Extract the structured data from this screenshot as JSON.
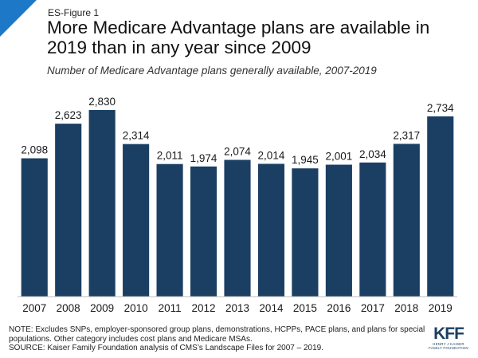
{
  "header": {
    "figure_label": "ES-Figure 1",
    "title": "More Medicare Advantage plans are available in 2019 than in any year since 2009",
    "subtitle": "Number of Medicare Advantage plans generally available, 2007-2019"
  },
  "colors": {
    "bar": "#1b3f63",
    "corner_accent": "#1d78c7",
    "logo": "#1b3f63"
  },
  "chart_data": {
    "type": "bar",
    "title": "Number of Medicare Advantage plans generally available, 2007-2019",
    "xlabel": "",
    "ylabel": "",
    "categories": [
      "2007",
      "2008",
      "2009",
      "2010",
      "2011",
      "2012",
      "2013",
      "2014",
      "2015",
      "2016",
      "2017",
      "2018",
      "2019"
    ],
    "values": [
      2098,
      2623,
      2830,
      2314,
      2011,
      1974,
      2074,
      2014,
      1945,
      2001,
      2034,
      2317,
      2734
    ],
    "value_labels": [
      "2,098",
      "2,623",
      "2,830",
      "2,314",
      "2,011",
      "1,974",
      "2,074",
      "2,014",
      "1,945",
      "2,001",
      "2,034",
      "2,317",
      "2,734"
    ],
    "ylim": [
      0,
      2830
    ],
    "grid": false,
    "legend": "none"
  },
  "footnote": {
    "note_line1": "NOTE: Excludes SNPs, employer-sponsored group plans, demonstrations, HCPPs, PACE plans, and plans for special",
    "note_line2": "populations.  Other category includes cost plans and Medicare MSAs.",
    "source": "SOURCE: Kaiser Family Foundation analysis of CMS’s Landscape Files for 2007 – 2019."
  },
  "logo": {
    "main": "KFF",
    "sub_line1": "HENRY J KAISER",
    "sub_line2": "FAMILY FOUNDATION"
  }
}
